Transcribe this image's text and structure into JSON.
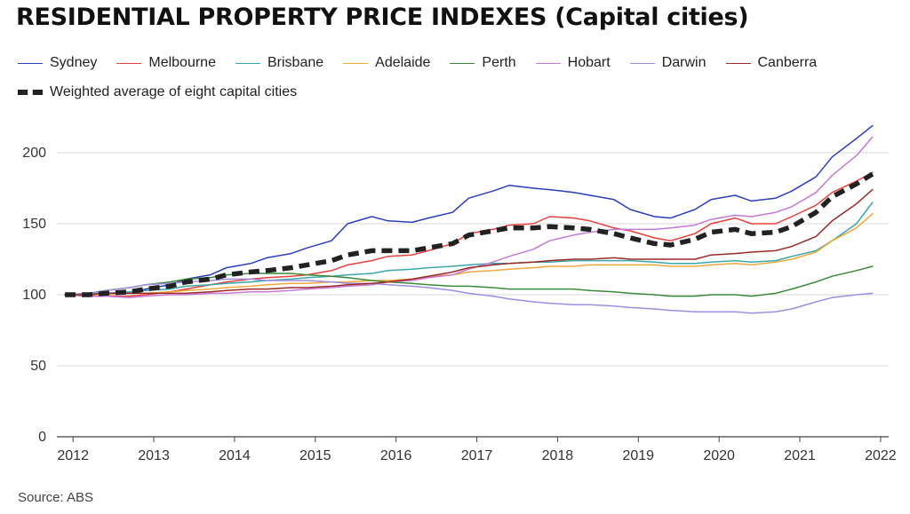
{
  "chart_data": {
    "type": "line",
    "title": "RESIDENTIAL PROPERTY PRICE INDEXES (Capital cities)",
    "source": "Source: ABS",
    "xlim": [
      2011.8,
      2022.1
    ],
    "ylim": [
      0,
      220
    ],
    "y_ticks": [
      0,
      50,
      100,
      150,
      200
    ],
    "x_ticks": [
      2012,
      2013,
      2014,
      2015,
      2016,
      2017,
      2018,
      2019,
      2020,
      2021,
      2022
    ],
    "grid": "horizontal",
    "legend_placement": "top",
    "x": [
      2011.9,
      2012.2,
      2012.4,
      2012.7,
      2012.9,
      2013.2,
      2013.4,
      2013.7,
      2013.9,
      2014.2,
      2014.4,
      2014.7,
      2014.9,
      2015.2,
      2015.4,
      2015.7,
      2015.9,
      2016.2,
      2016.4,
      2016.7,
      2016.9,
      2017.2,
      2017.4,
      2017.7,
      2017.9,
      2018.2,
      2018.4,
      2018.7,
      2018.9,
      2019.2,
      2019.4,
      2019.7,
      2019.9,
      2020.2,
      2020.4,
      2020.7,
      2020.9,
      2021.2,
      2021.4,
      2021.7,
      2021.9
    ],
    "series": [
      {
        "name": "Sydney",
        "color": "#2b3fbf",
        "values": [
          100,
          100,
          101,
          101,
          104,
          107,
          111,
          114,
          119,
          122,
          126,
          129,
          133,
          138,
          150,
          155,
          152,
          151,
          154,
          158,
          168,
          173,
          177,
          175,
          174,
          172,
          170,
          167,
          160,
          155,
          154,
          160,
          167,
          170,
          166,
          168,
          173,
          183,
          197,
          210,
          219
        ]
      },
      {
        "name": "Melbourne",
        "color": "#e8413c",
        "values": [
          100,
          99,
          99,
          99,
          100,
          102,
          104,
          107,
          109,
          111,
          112,
          113,
          114,
          117,
          121,
          124,
          127,
          128,
          131,
          136,
          143,
          146,
          149,
          150,
          155,
          154,
          152,
          147,
          145,
          140,
          138,
          143,
          150,
          154,
          150,
          150,
          155,
          163,
          172,
          180,
          186
        ]
      },
      {
        "name": "Brisbane",
        "color": "#3aa7ad",
        "values": [
          100,
          101,
          101,
          102,
          103,
          104,
          106,
          107,
          108,
          109,
          110,
          111,
          112,
          113,
          114,
          115,
          117,
          118,
          119,
          120,
          121,
          122,
          122,
          123,
          123,
          124,
          124,
          124,
          124,
          123,
          122,
          122,
          123,
          124,
          123,
          124,
          127,
          131,
          138,
          150,
          165
        ]
      },
      {
        "name": "Adelaide",
        "color": "#f0a83a",
        "values": [
          100,
          100,
          100,
          101,
          101,
          102,
          103,
          104,
          105,
          106,
          107,
          108,
          108,
          109,
          109,
          110,
          110,
          111,
          113,
          114,
          116,
          117,
          118,
          119,
          120,
          120,
          121,
          121,
          121,
          121,
          120,
          120,
          121,
          122,
          121,
          123,
          125,
          130,
          138,
          147,
          157
        ]
      },
      {
        "name": "Perth",
        "color": "#3a8a3a",
        "values": [
          100,
          101,
          103,
          105,
          107,
          109,
          111,
          112,
          114,
          115,
          115,
          115,
          114,
          113,
          112,
          110,
          109,
          108,
          107,
          106,
          106,
          105,
          104,
          104,
          104,
          104,
          103,
          102,
          101,
          100,
          99,
          99,
          100,
          100,
          99,
          101,
          104,
          109,
          113,
          117,
          120
        ]
      },
      {
        "name": "Hobart",
        "color": "#c47ad6",
        "values": [
          100,
          99,
          99,
          98,
          99,
          100,
          100,
          101,
          101,
          102,
          102,
          103,
          104,
          105,
          106,
          107,
          109,
          110,
          112,
          114,
          118,
          123,
          127,
          132,
          138,
          142,
          144,
          146,
          146,
          146,
          147,
          149,
          153,
          156,
          155,
          158,
          162,
          172,
          184,
          198,
          211
        ]
      },
      {
        "name": "Darwin",
        "color": "#9d8fe0",
        "values": [
          100,
          101,
          103,
          105,
          107,
          108,
          109,
          110,
          111,
          111,
          110,
          110,
          110,
          109,
          108,
          108,
          107,
          106,
          105,
          103,
          101,
          99,
          97,
          95,
          94,
          93,
          93,
          92,
          91,
          90,
          89,
          88,
          88,
          88,
          87,
          88,
          90,
          95,
          98,
          100,
          101
        ]
      },
      {
        "name": "Canberra",
        "color": "#9b2a28",
        "values": [
          100,
          100,
          101,
          101,
          101,
          101,
          101,
          102,
          103,
          104,
          104,
          105,
          105,
          106,
          107,
          108,
          109,
          111,
          113,
          116,
          119,
          121,
          122,
          123,
          124,
          125,
          125,
          126,
          125,
          125,
          125,
          125,
          128,
          129,
          130,
          131,
          134,
          141,
          152,
          164,
          174
        ]
      },
      {
        "name": "Weighted average of eight capital cities",
        "color": "#222222",
        "dashed": true,
        "values": [
          100,
          100,
          101,
          102,
          104,
          106,
          109,
          111,
          114,
          116,
          117,
          119,
          121,
          124,
          128,
          131,
          131,
          131,
          133,
          136,
          142,
          145,
          147,
          147,
          148,
          147,
          146,
          143,
          140,
          136,
          135,
          139,
          144,
          146,
          143,
          144,
          148,
          158,
          169,
          178,
          185
        ]
      }
    ]
  }
}
